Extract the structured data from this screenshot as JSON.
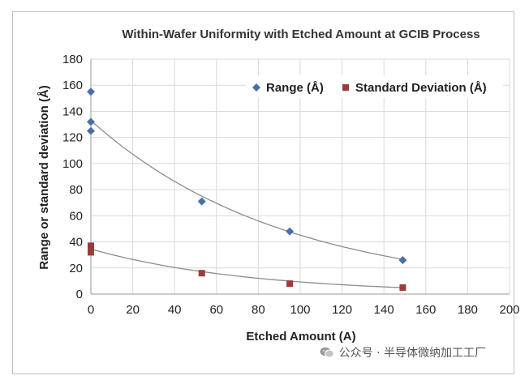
{
  "chart_data": {
    "type": "scatter",
    "title": "Within-Wafer Uniformity with Etched Amount at GCIB Process",
    "xlabel": "Etched Amount (A)",
    "ylabel": "Range or standard deviation (Å)",
    "xlim": [
      0,
      200
    ],
    "ylim": [
      0,
      180
    ],
    "xticks": [
      0,
      20,
      40,
      60,
      80,
      100,
      120,
      140,
      160,
      180,
      200
    ],
    "yticks": [
      0,
      20,
      40,
      60,
      80,
      100,
      120,
      140,
      160,
      180
    ],
    "grid": true,
    "legend_position": "top-right",
    "series": [
      {
        "name": "Range (Å)",
        "marker": "diamond",
        "color": "#4a6fa5",
        "points": [
          [
            0,
            155
          ],
          [
            0,
            132
          ],
          [
            0,
            125
          ],
          [
            53,
            71
          ],
          [
            95,
            48
          ],
          [
            149,
            26
          ]
        ],
        "trendline": {
          "type": "exponential",
          "a": 133,
          "b": -0.0108
        }
      },
      {
        "name": "Standard Deviation (Å)",
        "marker": "square",
        "color": "#9b3b3b",
        "points": [
          [
            0,
            37
          ],
          [
            0,
            34
          ],
          [
            0,
            32
          ],
          [
            53,
            16
          ],
          [
            95,
            8
          ],
          [
            149,
            5
          ]
        ],
        "trendline": {
          "type": "exponential",
          "a": 34.5,
          "b": -0.0131
        }
      }
    ],
    "trendline_color": "#8c8c8c"
  },
  "watermark": {
    "icon": "wechat-icon",
    "text": "公众号 · 半导体微纳加工工厂"
  }
}
